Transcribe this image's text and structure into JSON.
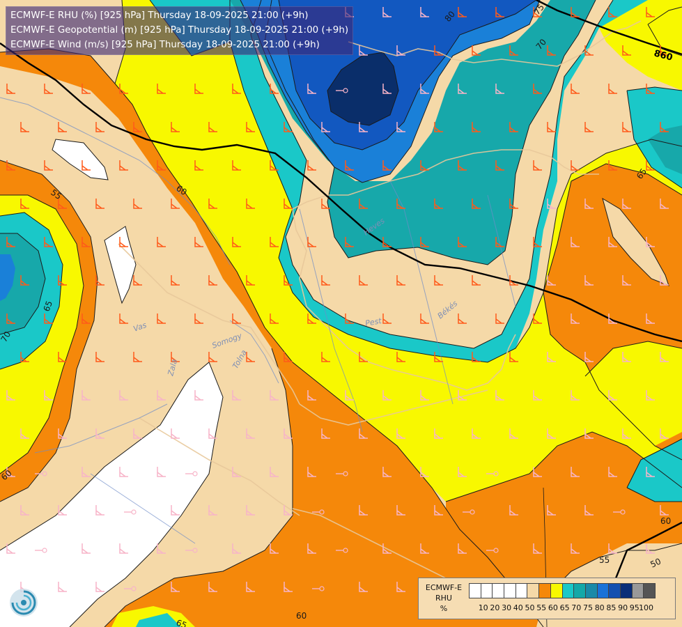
{
  "header": {
    "lines": [
      "ECMWF-E RHU (%) [925 hPa] Thursday 18-09-2025 21:00 (+9h)",
      "ECMWF-E Geopotential (m) [925 hPa] Thursday 18-09-2025 21:00 (+9h)",
      "ECMWF-E Wind (m/s) [925 hPa] Thursday 18-09-2025 21:00 (+9h)"
    ]
  },
  "map": {
    "contour_labels": [
      "50",
      "55",
      "55",
      "60",
      "60",
      "60",
      "60",
      "65",
      "65",
      "65",
      "70",
      "70",
      "75",
      "80"
    ],
    "geopotential_label": "860",
    "river_labels": [
      "Vas",
      "Zala",
      "Somogy",
      "Tolna",
      "Pest",
      "Békés",
      "Heves"
    ]
  },
  "legend": {
    "title_lines": [
      "ECMWF-E",
      "RHU",
      "%"
    ],
    "colors": [
      "#ffffff",
      "#ffffff",
      "#ffffff",
      "#ffffff",
      "#ffffff",
      "#f5d9a8",
      "#f5880a",
      "#f8f800",
      "#1ac8c8",
      "#14a8a8",
      "#1a8aa8",
      "#1a72d8",
      "#1450b0",
      "#0a2e78",
      "#999999",
      "#555555"
    ],
    "ticks": [
      "10",
      "20",
      "30",
      "40",
      "50",
      "55",
      "60",
      "65",
      "70",
      "75",
      "80",
      "85",
      "90",
      "95",
      "100"
    ]
  },
  "colors": {
    "rhu_50_55": "#f5d9a8",
    "rhu_55_60": "#f5880a",
    "rhu_60_65": "#f8f800",
    "rhu_65_70": "#1ac8c8",
    "rhu_70_75": "#17a8aa",
    "rhu_75_80": "#1a8cd0",
    "rhu_80_85": "#1464c8",
    "rhu_85_90": "#0a3070",
    "rhu_below_50": "#ffffff"
  }
}
